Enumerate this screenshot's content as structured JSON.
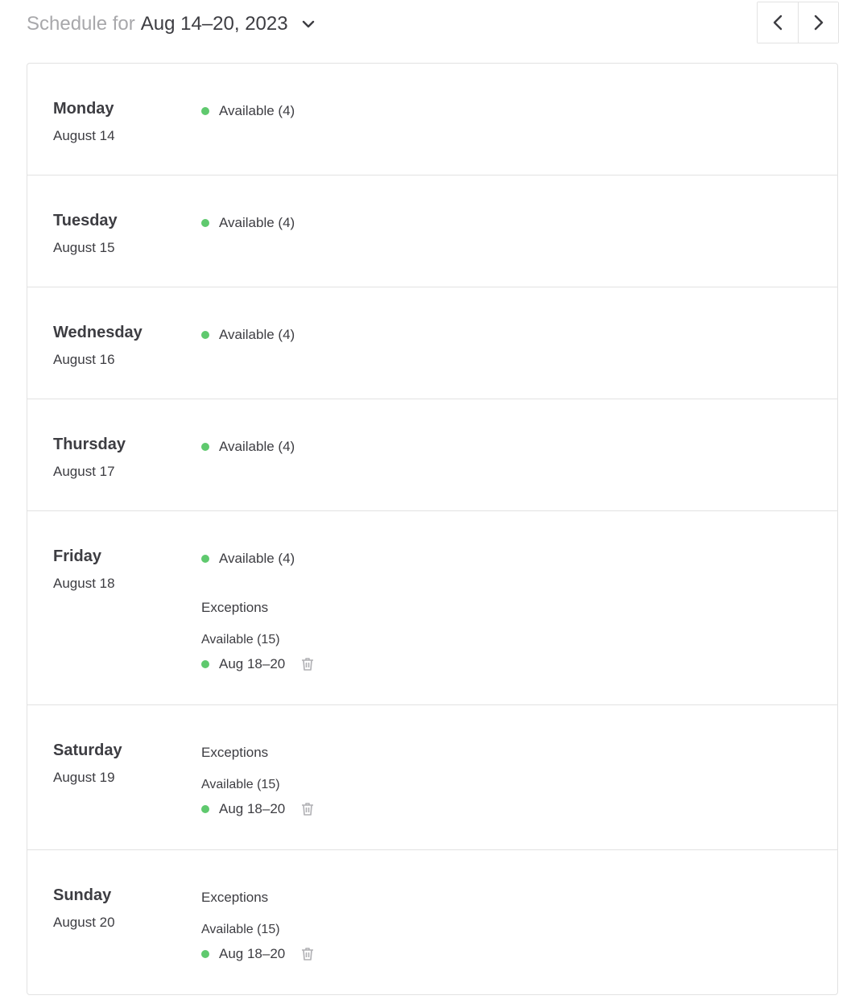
{
  "header": {
    "prefix": "Schedule for",
    "range": "Aug 14–20, 2023"
  },
  "colors": {
    "available": "#5fc96e",
    "border": "#e2e2e2"
  },
  "days": [
    {
      "day": "Monday",
      "date": "August 14",
      "status": "Available (4)"
    },
    {
      "day": "Tuesday",
      "date": "August 15",
      "status": "Available (4)"
    },
    {
      "day": "Wednesday",
      "date": "August 16",
      "status": "Available (4)"
    },
    {
      "day": "Thursday",
      "date": "August 17",
      "status": "Available (4)"
    },
    {
      "day": "Friday",
      "date": "August 18",
      "status": "Available (4)",
      "exceptions_title": "Exceptions",
      "exception_label": "Available (15)",
      "exception_range": "Aug 18–20"
    },
    {
      "day": "Saturday",
      "date": "August 19",
      "exceptions_title": "Exceptions",
      "exception_label": "Available (15)",
      "exception_range": "Aug 18–20"
    },
    {
      "day": "Sunday",
      "date": "August 20",
      "exceptions_title": "Exceptions",
      "exception_label": "Available (15)",
      "exception_range": "Aug 18–20"
    }
  ]
}
